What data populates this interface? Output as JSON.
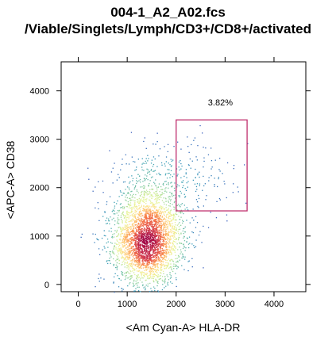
{
  "chart_data": {
    "type": "scatter",
    "subtype": "flow-cytometry-density-dot-plot",
    "title": "004-1_A2_A02.fcs",
    "subtitle": "/Viable/Singlets/Lymph/CD3+/CD8+/activated",
    "xlabel": "<Am Cyan-A> HLA-DR",
    "ylabel": "<APC-A> CD38",
    "xlim": [
      -350,
      4650
    ],
    "ylim": [
      -150,
      4600
    ],
    "xticks": [
      0,
      1000,
      2000,
      3000,
      4000
    ],
    "yticks": [
      0,
      1000,
      2000,
      3000,
      4000
    ],
    "xtick_labels": [
      "0",
      "1000",
      "2000",
      "3000",
      "4000"
    ],
    "ytick_labels": [
      "0",
      "1000",
      "2000",
      "3000",
      "4000"
    ],
    "grid": false,
    "density_colormap": [
      "#3b4cc0",
      "#3a9fb8",
      "#8fd19e",
      "#e6f598",
      "#fee08b",
      "#fdae61",
      "#f46d43",
      "#d53e4f",
      "#9e0142"
    ],
    "populations": [
      {
        "center_x": 1400,
        "center_y": 850,
        "sd_x": 330,
        "sd_y": 420,
        "count": 2600
      },
      {
        "center_x": 1450,
        "center_y": 1500,
        "sd_x": 420,
        "sd_y": 550,
        "count": 900
      },
      {
        "center_x": 2500,
        "center_y": 2200,
        "sd_x": 450,
        "sd_y": 450,
        "count": 120
      }
    ],
    "gate": {
      "name": "activated",
      "x_range": [
        2000,
        3450
      ],
      "y_range": [
        1520,
        3400
      ],
      "percentage_label": "3.82%",
      "label_position_data": [
        2650,
        3700
      ],
      "color": "#c0306e"
    }
  }
}
